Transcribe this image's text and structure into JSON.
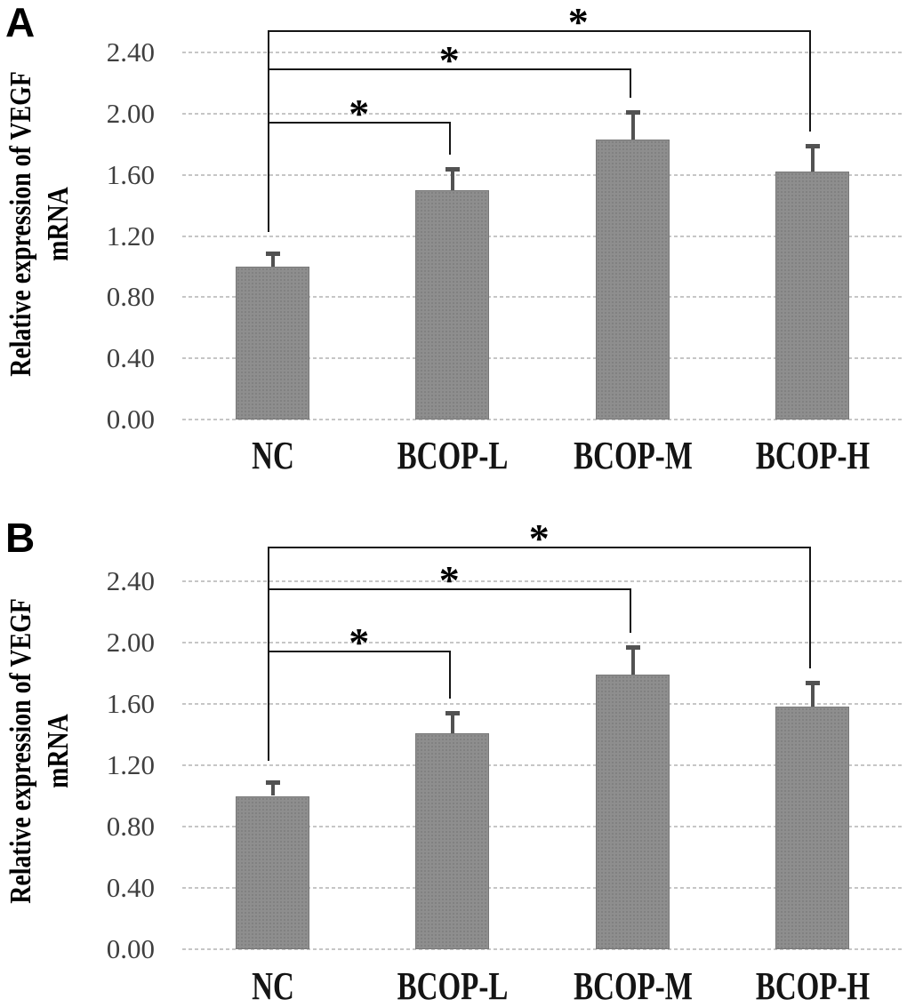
{
  "figure": {
    "background_color": "#ffffff",
    "bar_color": "#8b8b8b",
    "error_bar_color": "#525252",
    "gridline_color": "#c6c6c6",
    "bracket_color": "#151515",
    "tick_label_color": "#3f3f3f"
  },
  "chart_data": [
    {
      "type": "bar",
      "panel": "A",
      "ylabel": "Relative expression of VEGF mRNA",
      "ylabel_lines": [
        "Relative expression of VEGF",
        "mRNA"
      ],
      "categories": [
        "NC",
        "BCOP-L",
        "BCOP-M",
        "BCOP-H"
      ],
      "values": [
        1.0,
        1.5,
        1.83,
        1.62
      ],
      "errors_plus": [
        0.09,
        0.14,
        0.18,
        0.17
      ],
      "yticks": [
        "0.00",
        "0.40",
        "0.80",
        "1.20",
        "1.60",
        "2.00",
        "2.40"
      ],
      "ylim": [
        0,
        2.7
      ],
      "grid": true,
      "legend": null,
      "significance_brackets": [
        {
          "from": "NC",
          "to": "BCOP-L",
          "label": "*",
          "y": 1.94
        },
        {
          "from": "NC",
          "to": "BCOP-M",
          "label": "*",
          "y": 2.29
        },
        {
          "from": "NC",
          "to": "BCOP-H",
          "label": "*",
          "y": 2.54,
          "label_x_offset": 44
        }
      ]
    },
    {
      "type": "bar",
      "panel": "B",
      "ylabel": "Relative expression of VEGF mRNA",
      "ylabel_lines": [
        "Relative expression of VEGF",
        "mRNA"
      ],
      "categories": [
        "NC",
        "BCOP-L",
        "BCOP-M",
        "BCOP-H"
      ],
      "values": [
        1.0,
        1.41,
        1.79,
        1.58
      ],
      "errors_plus": [
        0.09,
        0.13,
        0.18,
        0.16
      ],
      "yticks": [
        "0.00",
        "0.40",
        "0.80",
        "1.20",
        "1.60",
        "2.00",
        "2.40"
      ],
      "ylim": [
        0,
        2.7
      ],
      "grid": true,
      "legend": null,
      "significance_brackets": [
        {
          "from": "NC",
          "to": "BCOP-L",
          "label": "*",
          "y": 1.94
        },
        {
          "from": "NC",
          "to": "BCOP-M",
          "label": "*",
          "y": 2.35
        },
        {
          "from": "NC",
          "to": "BCOP-H",
          "label": "*",
          "y": 2.62
        }
      ]
    }
  ]
}
